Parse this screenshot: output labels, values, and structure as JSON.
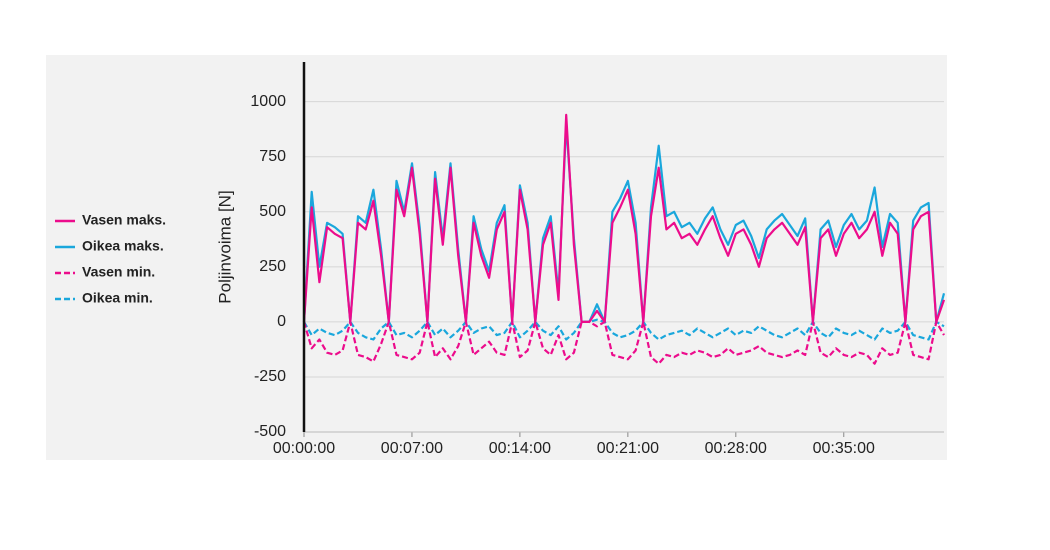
{
  "chart_data": {
    "type": "line",
    "ylabel": "Poljinvoima [N]",
    "x": [
      0,
      30,
      60,
      90,
      120,
      150,
      180,
      210,
      240,
      270,
      300,
      330,
      360,
      390,
      420,
      450,
      480,
      510,
      540,
      570,
      600,
      630,
      660,
      690,
      720,
      750,
      780,
      810,
      840,
      870,
      900,
      930,
      960,
      990,
      1020,
      1050,
      1080,
      1110,
      1140,
      1170,
      1200,
      1230,
      1260,
      1290,
      1320,
      1350,
      1380,
      1410,
      1440,
      1470,
      1500,
      1530,
      1560,
      1590,
      1620,
      1650,
      1680,
      1710,
      1740,
      1770,
      1800,
      1830,
      1860,
      1890,
      1920,
      1950,
      1980,
      2010,
      2040,
      2070,
      2100,
      2130,
      2160,
      2190,
      2220,
      2250,
      2280,
      2310,
      2340,
      2370,
      2400,
      2430,
      2460,
      2490
    ],
    "xlim": [
      0,
      2490
    ],
    "xticks": [
      {
        "value": 0,
        "label": "00:00:00"
      },
      {
        "value": 420,
        "label": "00:07:00"
      },
      {
        "value": 840,
        "label": "00:14:00"
      },
      {
        "value": 1260,
        "label": "00:21:00"
      },
      {
        "value": 1680,
        "label": "00:28:00"
      },
      {
        "value": 2100,
        "label": "00:35:00"
      }
    ],
    "ylim": [
      -500,
      1180
    ],
    "yticks": [
      -500,
      -250,
      0,
      250,
      500,
      750,
      1000
    ],
    "grid": true,
    "legend": "left",
    "series": [
      {
        "name": "Vasen maks.",
        "color": "#ec0c8c",
        "dashed": false,
        "values": [
          0,
          520,
          180,
          430,
          400,
          380,
          0,
          450,
          420,
          550,
          300,
          0,
          600,
          480,
          700,
          400,
          0,
          650,
          350,
          700,
          300,
          0,
          450,
          300,
          200,
          420,
          500,
          0,
          600,
          420,
          0,
          350,
          450,
          100,
          940,
          350,
          0,
          0,
          50,
          0,
          450,
          520,
          600,
          400,
          0,
          480,
          700,
          420,
          450,
          380,
          400,
          350,
          420,
          480,
          380,
          300,
          400,
          420,
          350,
          250,
          380,
          420,
          450,
          400,
          350,
          430,
          0,
          380,
          420,
          300,
          400,
          450,
          380,
          420,
          500,
          300,
          450,
          400,
          0,
          420,
          480,
          500,
          0,
          100
        ]
      },
      {
        "name": "Oikea maks.",
        "color": "#1aa7dc",
        "dashed": false,
        "values": [
          0,
          590,
          250,
          450,
          430,
          400,
          0,
          480,
          450,
          600,
          330,
          0,
          640,
          500,
          720,
          430,
          0,
          680,
          380,
          720,
          330,
          0,
          480,
          330,
          230,
          450,
          530,
          0,
          620,
          450,
          0,
          380,
          480,
          130,
          900,
          380,
          0,
          0,
          80,
          0,
          500,
          560,
          640,
          450,
          0,
          520,
          800,
          480,
          500,
          430,
          450,
          400,
          470,
          520,
          420,
          350,
          440,
          460,
          390,
          290,
          420,
          460,
          490,
          440,
          390,
          470,
          0,
          420,
          460,
          340,
          440,
          490,
          420,
          460,
          610,
          340,
          490,
          450,
          0,
          460,
          520,
          540,
          0,
          130
        ]
      },
      {
        "name": "Vasen min.",
        "color": "#ec0c8c",
        "dashed": true,
        "values": [
          0,
          -120,
          -80,
          -140,
          -150,
          -130,
          0,
          -150,
          -160,
          -180,
          -100,
          0,
          -150,
          -160,
          -170,
          -140,
          0,
          -160,
          -120,
          -170,
          -110,
          0,
          -150,
          -120,
          -90,
          -140,
          -150,
          0,
          -160,
          -130,
          0,
          -120,
          -150,
          -60,
          -170,
          -140,
          0,
          0,
          -20,
          0,
          -150,
          -160,
          -170,
          -130,
          0,
          -160,
          -190,
          -150,
          -160,
          -140,
          -150,
          -130,
          -140,
          -160,
          -150,
          -120,
          -150,
          -140,
          -130,
          -110,
          -140,
          -150,
          -160,
          -150,
          -130,
          -150,
          0,
          -140,
          -160,
          -120,
          -150,
          -160,
          -140,
          -150,
          -190,
          -120,
          -150,
          -140,
          0,
          -150,
          -160,
          -170,
          0,
          -60
        ]
      },
      {
        "name": "Oikea min.",
        "color": "#1aa7dc",
        "dashed": true,
        "values": [
          0,
          -60,
          -30,
          -50,
          -60,
          -40,
          0,
          -50,
          -70,
          -80,
          -30,
          0,
          -60,
          -50,
          -70,
          -40,
          0,
          -60,
          -30,
          -70,
          -40,
          0,
          -50,
          -30,
          -20,
          -60,
          -50,
          0,
          -70,
          -40,
          0,
          -40,
          -60,
          -20,
          -80,
          -50,
          0,
          0,
          10,
          0,
          -50,
          -70,
          -60,
          -40,
          0,
          -50,
          -80,
          -60,
          -50,
          -40,
          -60,
          -30,
          -50,
          -70,
          -50,
          -30,
          -60,
          -40,
          -50,
          -20,
          -40,
          -60,
          -70,
          -50,
          -30,
          -60,
          0,
          -50,
          -70,
          -30,
          -50,
          -60,
          -40,
          -60,
          -80,
          -30,
          -50,
          -40,
          0,
          -60,
          -70,
          -80,
          0,
          -20
        ]
      }
    ]
  }
}
